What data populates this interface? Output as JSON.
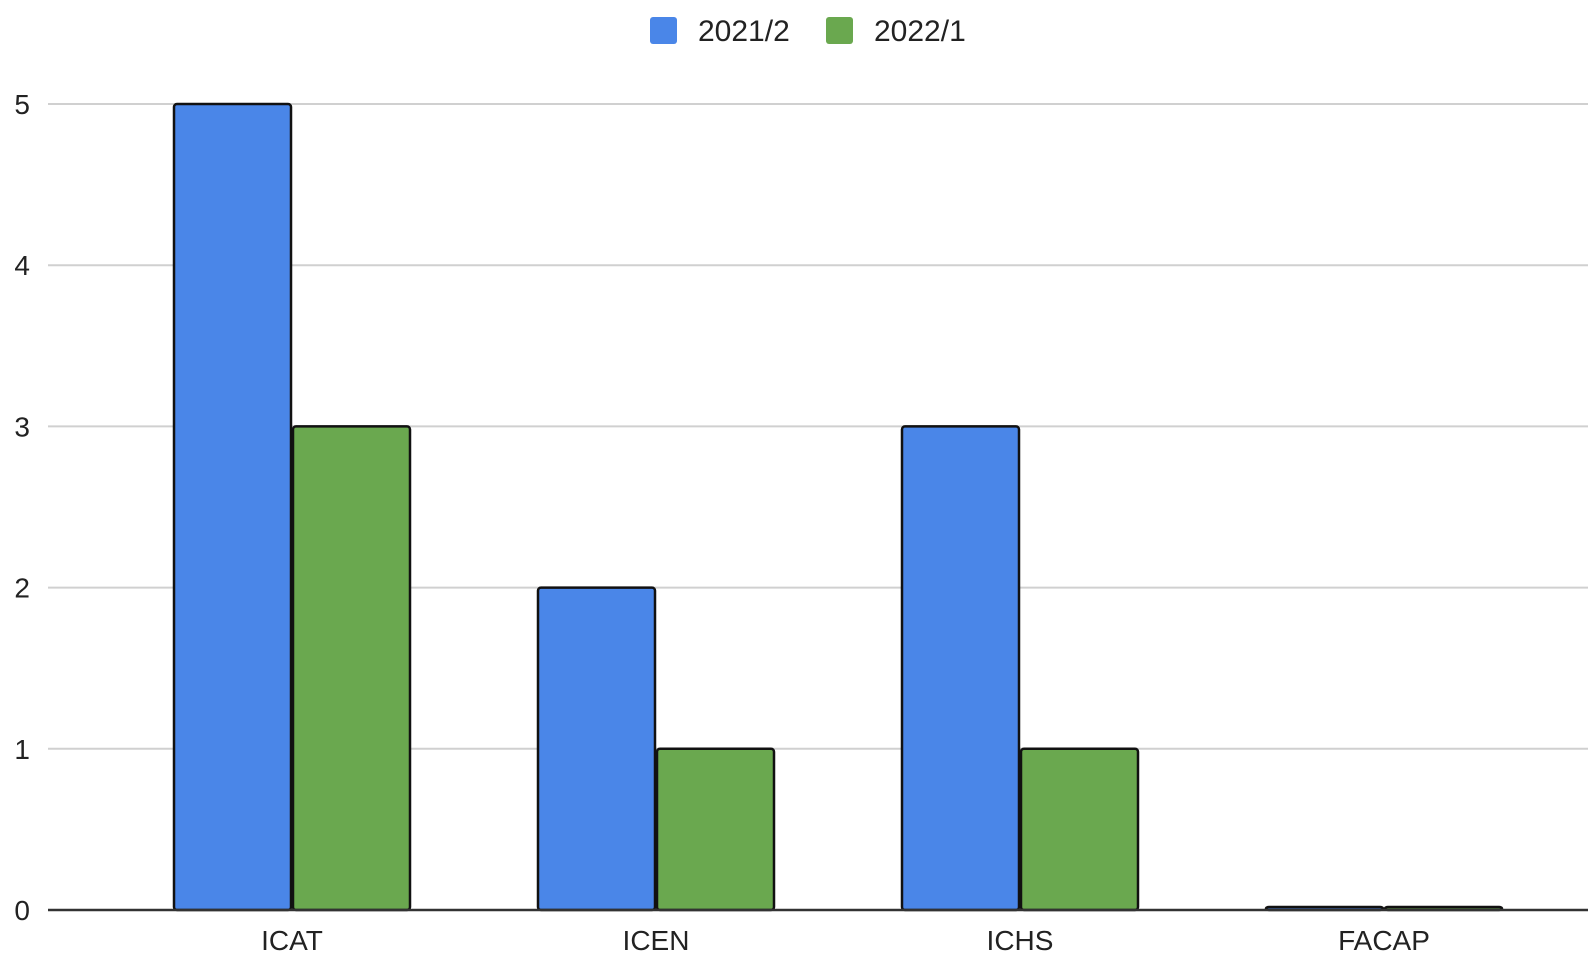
{
  "chart_data": {
    "type": "bar",
    "categories": [
      "ICAT",
      "ICEN",
      "ICHS",
      "FACAP"
    ],
    "series": [
      {
        "name": "2021/2",
        "values": [
          5,
          2,
          3,
          0
        ],
        "color": "#4a86e8"
      },
      {
        "name": "2022/1",
        "values": [
          3,
          1,
          1,
          0
        ],
        "color": "#6aa84f"
      }
    ],
    "title": "",
    "xlabel": "",
    "ylabel": "",
    "ylim": [
      0,
      5
    ],
    "yticks": [
      0,
      1,
      2,
      3,
      4,
      5
    ],
    "grid": true,
    "legend_position": "top-center"
  }
}
